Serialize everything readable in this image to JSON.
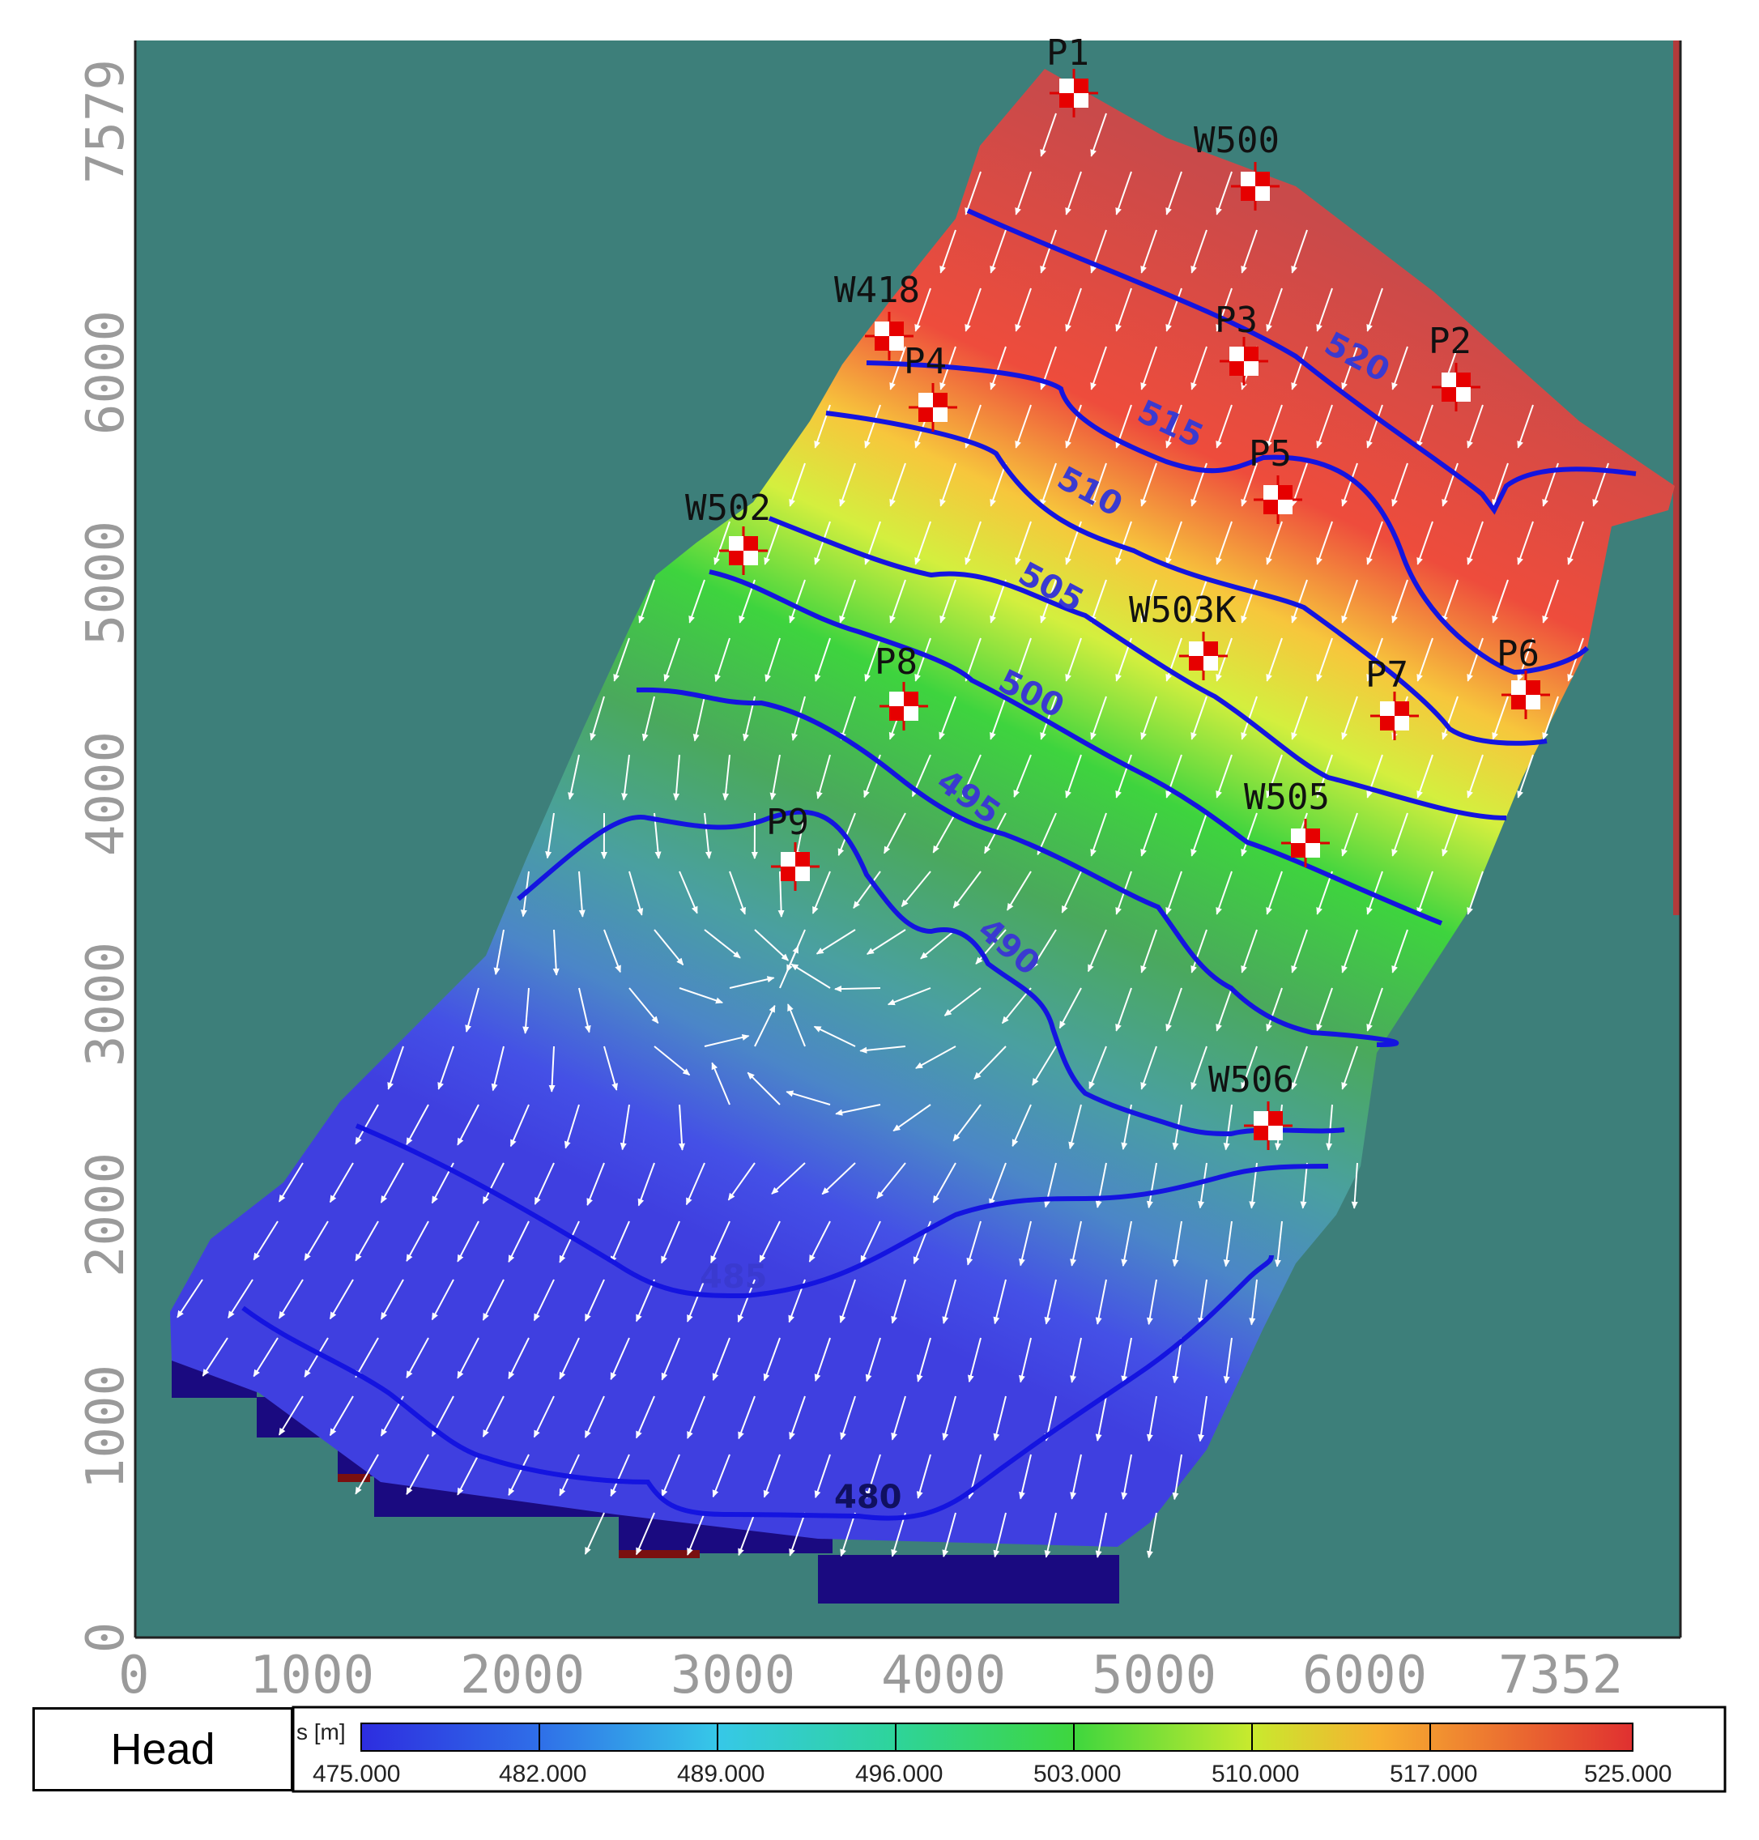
{
  "map": {
    "x_axis": {
      "ticks": [
        "0",
        "1000",
        "2000",
        "3000",
        "4000",
        "5000",
        "6000",
        "7352"
      ]
    },
    "y_axis": {
      "ticks": [
        "0",
        "1000",
        "2000",
        "3000",
        "4000",
        "5000",
        "6000",
        "7579"
      ]
    },
    "contours": [
      {
        "label": "520"
      },
      {
        "label": "515"
      },
      {
        "label": "510"
      },
      {
        "label": "505"
      },
      {
        "label": "500"
      },
      {
        "label": "495"
      },
      {
        "label": "490"
      },
      {
        "label": "485"
      },
      {
        "label": "480"
      }
    ],
    "wells": [
      {
        "name": "P1"
      },
      {
        "name": "W500"
      },
      {
        "name": "W418"
      },
      {
        "name": "P3"
      },
      {
        "name": "P2"
      },
      {
        "name": "P4"
      },
      {
        "name": "P5"
      },
      {
        "name": "W502"
      },
      {
        "name": "W503K"
      },
      {
        "name": "P6"
      },
      {
        "name": "P7"
      },
      {
        "name": "P8"
      },
      {
        "name": "W505"
      },
      {
        "name": "P9"
      },
      {
        "name": "W506"
      }
    ],
    "colors": {
      "background": "#3d7f7a",
      "contour_line": "#1414e0",
      "inactive_cells": "#1a0a80"
    }
  },
  "legend": {
    "title": "Head",
    "unit_label": "s [m]",
    "ticks": [
      "475.000",
      "482.000",
      "489.000",
      "496.000",
      "503.000",
      "510.000",
      "517.000",
      "525.000"
    ],
    "range": [
      475,
      525
    ]
  }
}
